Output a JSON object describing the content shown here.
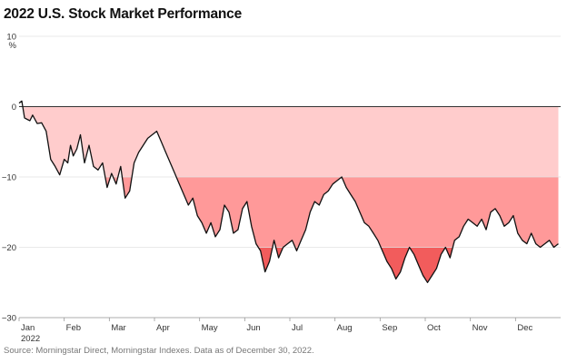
{
  "chart_data": {
    "type": "area",
    "title": "2022 U.S. Stock Market Performance",
    "ylabel": "%",
    "ylim": [
      -30,
      10
    ],
    "yticks": [
      10,
      0,
      -10,
      -20,
      -30
    ],
    "xlim": [
      0,
      12
    ],
    "month_ticks": [
      "Jan",
      "Feb",
      "Mar",
      "Apr",
      "May",
      "Jun",
      "Jul",
      "Aug",
      "Sep",
      "Oct",
      "Nov",
      "Dec"
    ],
    "year_label": "2022",
    "grid": true,
    "band_colors": {
      "zero_to_minus10": "#ffcccc",
      "minus10_to_minus20": "#ff9999",
      "below_minus20": "#f25c5c",
      "line": "#111111"
    },
    "x": [
      0.0,
      0.06,
      0.12,
      0.18,
      0.24,
      0.3,
      0.4,
      0.5,
      0.6,
      0.7,
      0.8,
      0.9,
      1.0,
      1.08,
      1.14,
      1.2,
      1.28,
      1.36,
      1.45,
      1.55,
      1.65,
      1.75,
      1.85,
      1.95,
      2.05,
      2.15,
      2.25,
      2.35,
      2.45,
      2.55,
      2.65,
      2.75,
      2.85,
      2.95,
      3.05,
      3.15,
      3.25,
      3.35,
      3.45,
      3.55,
      3.65,
      3.75,
      3.85,
      3.95,
      4.05,
      4.15,
      4.25,
      4.35,
      4.45,
      4.55,
      4.65,
      4.75,
      4.85,
      4.95,
      5.05,
      5.15,
      5.25,
      5.35,
      5.45,
      5.55,
      5.65,
      5.75,
      5.85,
      5.95,
      6.05,
      6.15,
      6.25,
      6.35,
      6.45,
      6.55,
      6.65,
      6.75,
      6.85,
      6.95,
      7.05,
      7.15,
      7.25,
      7.35,
      7.45,
      7.55,
      7.65,
      7.75,
      7.85,
      7.95,
      8.05,
      8.15,
      8.25,
      8.35,
      8.45,
      8.55,
      8.65,
      8.75,
      8.85,
      8.95,
      9.05,
      9.15,
      9.25,
      9.35,
      9.45,
      9.55,
      9.65,
      9.75,
      9.85,
      9.95,
      10.05,
      10.15,
      10.25,
      10.35,
      10.45,
      10.55,
      10.65,
      10.75,
      10.85,
      10.95,
      11.05,
      11.15,
      11.25,
      11.35,
      11.45,
      11.55,
      11.65,
      11.75,
      11.85,
      11.95
    ],
    "values": [
      0.5,
      0.8,
      -1.6,
      -1.8,
      -2.0,
      -1.2,
      -2.4,
      -2.3,
      -3.5,
      -7.5,
      -8.5,
      -9.7,
      -7.5,
      -8.0,
      -5.5,
      -7.0,
      -6.0,
      -4.0,
      -8.0,
      -5.5,
      -8.5,
      -9.0,
      -8.0,
      -11.5,
      -9.5,
      -11.0,
      -8.5,
      -13.0,
      -12.0,
      -8.0,
      -6.5,
      -5.5,
      -4.5,
      -4.0,
      -3.5,
      -5.0,
      -6.5,
      -8.0,
      -9.5,
      -11.0,
      -12.5,
      -14.0,
      -13.0,
      -15.5,
      -16.5,
      -18.0,
      -16.5,
      -18.5,
      -17.5,
      -14.0,
      -15.0,
      -18.0,
      -17.5,
      -14.5,
      -13.5,
      -17.0,
      -19.5,
      -20.5,
      -23.5,
      -22.0,
      -19.0,
      -21.5,
      -20.0,
      -19.5,
      -19.0,
      -20.5,
      -19.0,
      -17.5,
      -15.0,
      -13.5,
      -14.0,
      -12.5,
      -12.0,
      -11.0,
      -10.5,
      -10.0,
      -11.5,
      -12.5,
      -13.5,
      -15.0,
      -16.5,
      -17.0,
      -18.0,
      -19.0,
      -20.5,
      -22.0,
      -23.0,
      -24.5,
      -23.5,
      -21.5,
      -20.0,
      -21.0,
      -22.5,
      -24.0,
      -25.0,
      -24.0,
      -23.0,
      -21.0,
      -20.0,
      -21.5,
      -19.0,
      -18.5,
      -17.0,
      -16.0,
      -16.5,
      -17.0,
      -16.0,
      -17.5,
      -15.0,
      -14.5,
      -15.5,
      -17.0,
      -16.5,
      -15.5,
      -18.0,
      -19.0,
      -19.5,
      -18.0,
      -19.5,
      -20.0,
      -19.5,
      -19.0,
      -20.0,
      -19.5
    ]
  },
  "source": "Source: Morningstar Direct, Morningstar Indexes. Data as of December 30, 2022."
}
